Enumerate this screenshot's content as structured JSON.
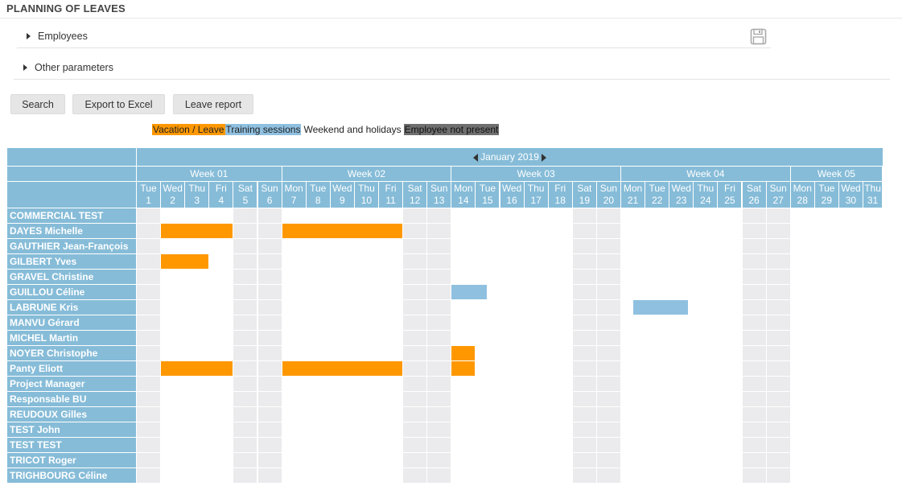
{
  "page": {
    "title": "PLANNING OF LEAVES"
  },
  "sections": [
    {
      "label": "Employees"
    },
    {
      "label": "Other parameters"
    }
  ],
  "buttons": {
    "search": "Search",
    "export": "Export to Excel",
    "report": "Leave report"
  },
  "legend": {
    "vacation": "Vacation / Leave",
    "training": "Training sessions",
    "weekend": "Weekend and holidays",
    "not_present": "Employee not present"
  },
  "colors": {
    "vacation": "#ff9800",
    "training": "#8fc0e0",
    "header": "#86bcd8",
    "weekend": "#ebebed"
  },
  "calendar": {
    "month": "January 2019",
    "weeks": [
      {
        "label": "Week 01",
        "days": 6
      },
      {
        "label": "Week 02",
        "days": 7
      },
      {
        "label": "Week 03",
        "days": 7
      },
      {
        "label": "Week 04",
        "days": 7
      },
      {
        "label": "Week 05",
        "days": 4
      }
    ],
    "days": [
      {
        "dow": "Tue",
        "num": "1"
      },
      {
        "dow": "Wed",
        "num": "2"
      },
      {
        "dow": "Thu",
        "num": "3"
      },
      {
        "dow": "Fri",
        "num": "4"
      },
      {
        "dow": "Sat",
        "num": "5"
      },
      {
        "dow": "Sun",
        "num": "6"
      },
      {
        "dow": "Mon",
        "num": "7"
      },
      {
        "dow": "Tue",
        "num": "8"
      },
      {
        "dow": "Wed",
        "num": "9"
      },
      {
        "dow": "Thu",
        "num": "10"
      },
      {
        "dow": "Fri",
        "num": "11"
      },
      {
        "dow": "Sat",
        "num": "12"
      },
      {
        "dow": "Sun",
        "num": "13"
      },
      {
        "dow": "Mon",
        "num": "14"
      },
      {
        "dow": "Tue",
        "num": "15"
      },
      {
        "dow": "Wed",
        "num": "16"
      },
      {
        "dow": "Thu",
        "num": "17"
      },
      {
        "dow": "Fri",
        "num": "18"
      },
      {
        "dow": "Sat",
        "num": "19"
      },
      {
        "dow": "Sun",
        "num": "20"
      },
      {
        "dow": "Mon",
        "num": "21"
      },
      {
        "dow": "Tue",
        "num": "22"
      },
      {
        "dow": "Wed",
        "num": "23"
      },
      {
        "dow": "Thu",
        "num": "24"
      },
      {
        "dow": "Fri",
        "num": "25"
      },
      {
        "dow": "Sat",
        "num": "26"
      },
      {
        "dow": "Sun",
        "num": "27"
      },
      {
        "dow": "Mon",
        "num": "28"
      },
      {
        "dow": "Tue",
        "num": "29"
      },
      {
        "dow": "Wed",
        "num": "30"
      },
      {
        "dow": "Thu",
        "num": "31"
      }
    ],
    "shaded_days": [
      1,
      5,
      6,
      12,
      13,
      19,
      20,
      26,
      27
    ],
    "shaded_until_day": 27
  },
  "employees": [
    {
      "name": "COMMERCIAL TEST",
      "leaves": []
    },
    {
      "name": "DAYES Michelle",
      "leaves": [
        {
          "type": "vacation",
          "start": 2,
          "end": 4
        },
        {
          "type": "vacation",
          "start": 7,
          "end": 11
        }
      ]
    },
    {
      "name": "GAUTHIER Jean-François",
      "leaves": []
    },
    {
      "name": "GILBERT Yves",
      "leaves": [
        {
          "type": "vacation",
          "start": 2,
          "end": 3
        }
      ]
    },
    {
      "name": "GRAVEL Christine",
      "leaves": []
    },
    {
      "name": "GUILLOU Céline",
      "leaves": [
        {
          "type": "training",
          "start": 14,
          "end": 14.5
        }
      ]
    },
    {
      "name": "LABRUNE Kris",
      "leaves": [
        {
          "type": "training",
          "start": 21.5,
          "end": 22.8
        }
      ]
    },
    {
      "name": "MANVU Gérard",
      "leaves": []
    },
    {
      "name": "MICHEL Martin",
      "leaves": []
    },
    {
      "name": "NOYER Christophe",
      "leaves": [
        {
          "type": "vacation",
          "start": 14,
          "end": 14
        }
      ]
    },
    {
      "name": "Panty Eliott",
      "leaves": [
        {
          "type": "vacation",
          "start": 2,
          "end": 4
        },
        {
          "type": "vacation",
          "start": 7,
          "end": 11
        },
        {
          "type": "vacation",
          "start": 14,
          "end": 14
        }
      ]
    },
    {
      "name": "Project Manager",
      "leaves": []
    },
    {
      "name": "Responsable BU",
      "leaves": []
    },
    {
      "name": "REUDOUX Gilles",
      "leaves": []
    },
    {
      "name": "TEST John",
      "leaves": []
    },
    {
      "name": "TEST TEST",
      "leaves": []
    },
    {
      "name": "TRICOT Roger",
      "leaves": []
    },
    {
      "name": "TRIGHBOURG Céline",
      "leaves": []
    }
  ]
}
